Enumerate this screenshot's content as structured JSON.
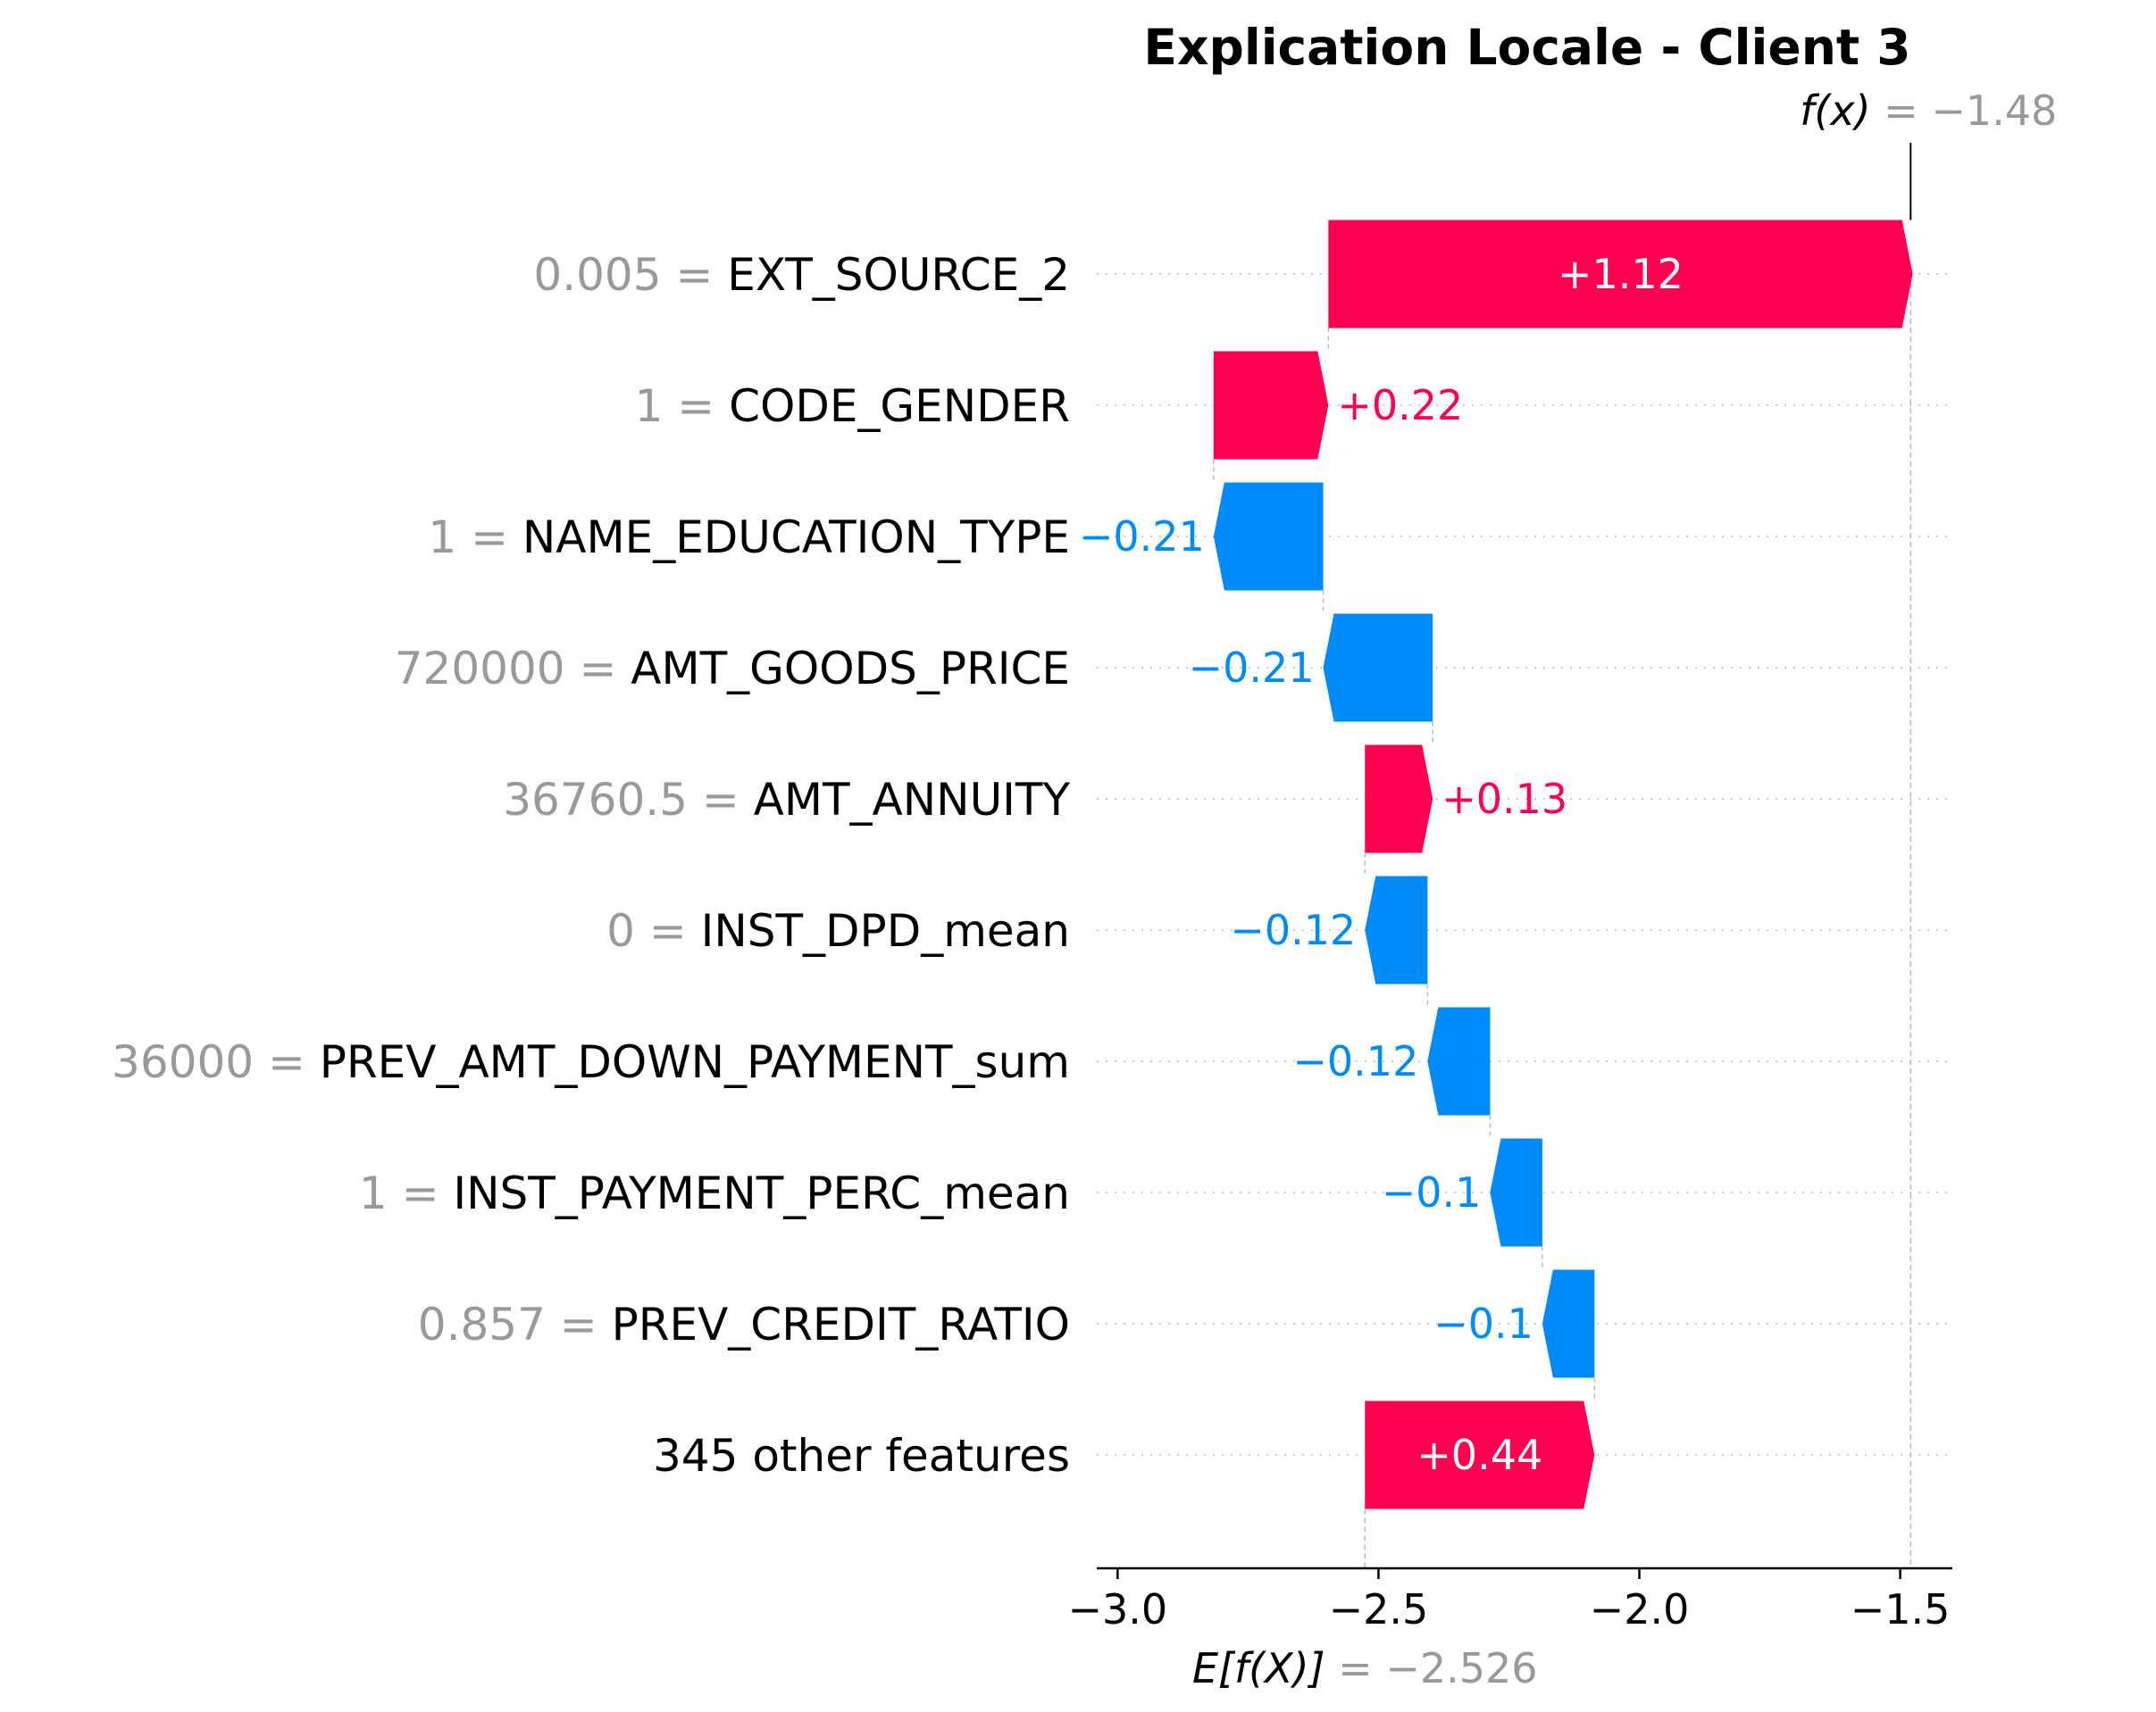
{
  "chart_data": {
    "type": "waterfall",
    "title": "Explication Locale - Client 3",
    "base_value": -2.526,
    "base_label": {
      "func": "E[f(X)]",
      "eq": " = ",
      "value_text": "−2.526"
    },
    "final_value": -1.48,
    "final_label": {
      "func": "f(x)",
      "eq": " = ",
      "value_text": "−1.48"
    },
    "xlim": [
      -3.04,
      -1.4
    ],
    "xticks": [
      -3.0,
      -2.5,
      -2.0,
      -1.5
    ],
    "xtick_labels": [
      "−3.0",
      "−2.5",
      "−2.0",
      "−1.5"
    ],
    "features": [
      {
        "value_text": "0.005",
        "name": "EXT_SOURCE_2",
        "contribution": 1.12,
        "label": "+1.12"
      },
      {
        "value_text": "1",
        "name": "CODE_GENDER",
        "contribution": 0.22,
        "label": "+0.22"
      },
      {
        "value_text": "1",
        "name": "NAME_EDUCATION_TYPE",
        "contribution": -0.21,
        "label": "−0.21"
      },
      {
        "value_text": "720000",
        "name": "AMT_GOODS_PRICE",
        "contribution": -0.21,
        "label": "−0.21"
      },
      {
        "value_text": "36760.5",
        "name": "AMT_ANNUITY",
        "contribution": 0.13,
        "label": "+0.13"
      },
      {
        "value_text": "0",
        "name": "INST_DPD_mean",
        "contribution": -0.12,
        "label": "−0.12"
      },
      {
        "value_text": "36000",
        "name": "PREV_AMT_DOWN_PAYMENT_sum",
        "contribution": -0.12,
        "label": "−0.12"
      },
      {
        "value_text": "1",
        "name": "INST_PAYMENT_PERC_mean",
        "contribution": -0.1,
        "label": "−0.1"
      },
      {
        "value_text": "0.857",
        "name": "PREV_CREDIT_RATIO",
        "contribution": -0.1,
        "label": "−0.1"
      },
      {
        "value_text": "",
        "name": "345 other features",
        "contribution": 0.44,
        "label": "+0.44"
      }
    ],
    "colors": {
      "positive": "#ff0051",
      "negative": "#008bfb",
      "value_gray": "#999999",
      "text": "#000000",
      "gridline": "#cccccc",
      "connector": "#bbbbbb"
    }
  }
}
